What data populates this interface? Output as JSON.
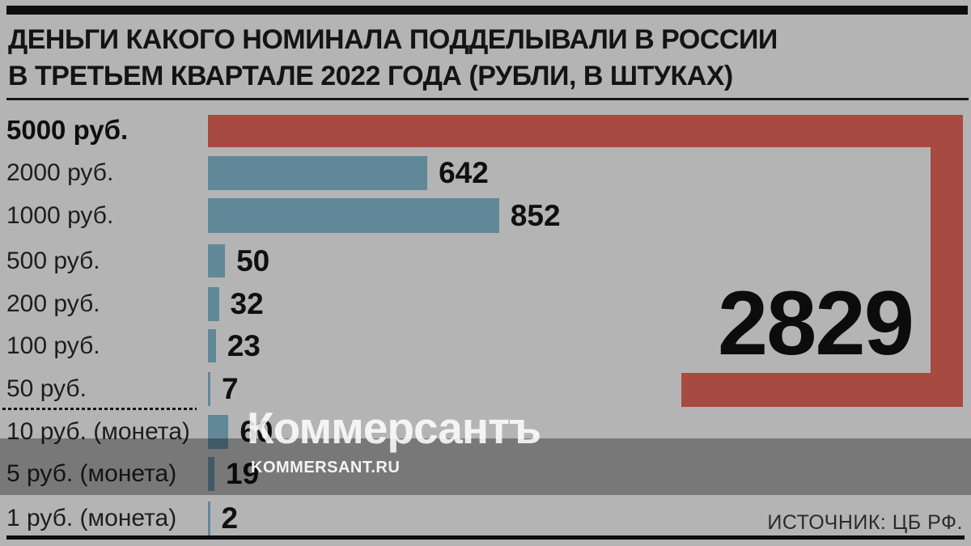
{
  "header": {
    "title_line1": "ДЕНЬГИ КАКОГО НОМИНАЛА ПОДДЕЛЫВАЛИ В РОССИИ",
    "title_line2": "В ТРЕТЬЕМ КВАРТАЛЕ 2022 ГОДА (РУБЛИ, В ШТУКАХ)"
  },
  "chart_data": {
    "type": "bar",
    "orientation": "horizontal",
    "title": "ДЕНЬГИ КАКОГО НОМИНАЛА ПОДДЕЛЫВАЛИ В РОССИИ В ТРЕТЬЕМ КВАРТАЛЕ 2022 ГОДА (РУБЛИ, В ШТУКАХ)",
    "categories": [
      "5000 руб.",
      "2000 руб.",
      "1000 руб.",
      "500 руб.",
      "200 руб.",
      "100 руб.",
      "50 руб.",
      "10 руб. (монета)",
      "5 руб. (монета)",
      "1 руб. (монета)"
    ],
    "values": [
      2829,
      642,
      852,
      50,
      32,
      23,
      7,
      60,
      19,
      2
    ],
    "units": "штук",
    "highlighted_category": "5000 руб.",
    "highlighted_value": 2829,
    "separator_after_index": 6,
    "grid": false,
    "legend": "none",
    "value_labels": "outside-end",
    "folded_bar_note": "5000-руб. bar wraps along right edge and bottom to fit 2829"
  },
  "rows": [
    {
      "label": "5000 руб.",
      "value_display": "2829",
      "emphasis": true
    },
    {
      "label": "2000 руб.",
      "value_display": "642",
      "emphasis": false
    },
    {
      "label": "1000 руб.",
      "value_display": "852",
      "emphasis": false
    },
    {
      "label": "500 руб.",
      "value_display": "50",
      "emphasis": false
    },
    {
      "label": "200 руб.",
      "value_display": "32",
      "emphasis": false
    },
    {
      "label": "100 руб.",
      "value_display": "23",
      "emphasis": false
    },
    {
      "label": "50 руб.",
      "value_display": "7",
      "emphasis": false
    },
    {
      "label": "10 руб. (монета)",
      "value_display": "60",
      "emphasis": false
    },
    {
      "label": "5 руб. (монета)",
      "value_display": "19",
      "emphasis": false
    },
    {
      "label": "1 руб. (монета)",
      "value_display": "2",
      "emphasis": false
    }
  ],
  "watermark": {
    "logo_text": "Коммерсантъ",
    "site_text": "KOMMERSANT.RU"
  },
  "source_label": "ИСТОЧНИК: ЦБ РФ.",
  "colors": {
    "background": "#b4b4b4",
    "bar_blue": "#618899",
    "bar_red": "#a74a42",
    "text": "#141414",
    "watermark_band": "rgba(0,0,0,0.335)"
  }
}
